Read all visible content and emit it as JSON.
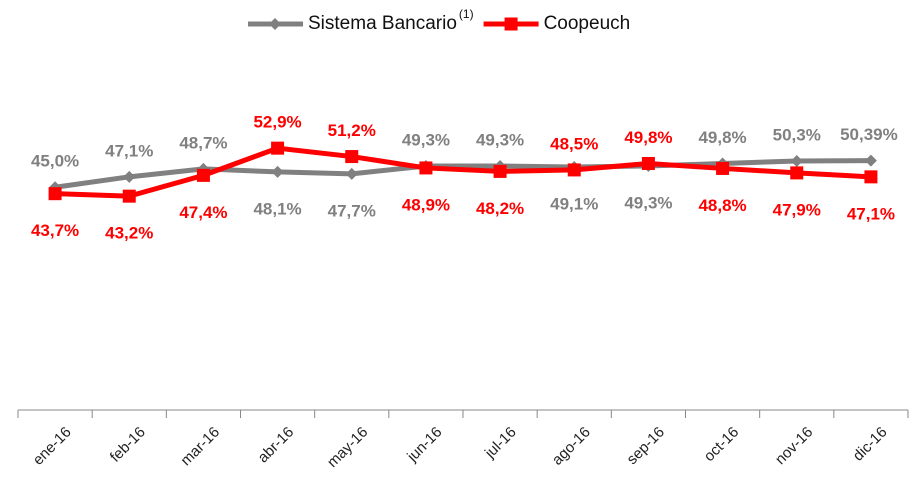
{
  "chart_data": {
    "type": "line",
    "categories": [
      "ene-16",
      "feb-16",
      "mar-16",
      "abr-16",
      "may-16",
      "jun-16",
      "jul-16",
      "ago-16",
      "sep-16",
      "oct-16",
      "nov-16",
      "dic-16"
    ],
    "series": [
      {
        "name": "Sistema Bancario",
        "name_note": "(1)",
        "color": "#808080",
        "marker": "diamond",
        "values": [
          45.0,
          47.1,
          48.7,
          48.1,
          47.7,
          49.3,
          49.3,
          49.1,
          49.3,
          49.8,
          50.3,
          50.39
        ],
        "value_labels": [
          "45,0%",
          "47,1%",
          "48,7%",
          "48,1%",
          "47,7%",
          "49,3%",
          "49,3%",
          "49,1%",
          "49,3%",
          "49,8%",
          "50,3%",
          "50,39%"
        ]
      },
      {
        "name": "Coopeuch",
        "color": "#ff0000",
        "marker": "square",
        "values": [
          43.7,
          43.2,
          47.4,
          52.9,
          51.2,
          48.9,
          48.2,
          48.5,
          49.8,
          48.8,
          47.9,
          47.1
        ],
        "value_labels": [
          "43,7%",
          "43,2%",
          "47,4%",
          "52,9%",
          "51,2%",
          "48,9%",
          "48,2%",
          "48,5%",
          "49,8%",
          "48,8%",
          "47,9%",
          "47,1%"
        ]
      }
    ],
    "ylim": [
      0,
      70
    ],
    "legend": "top"
  }
}
